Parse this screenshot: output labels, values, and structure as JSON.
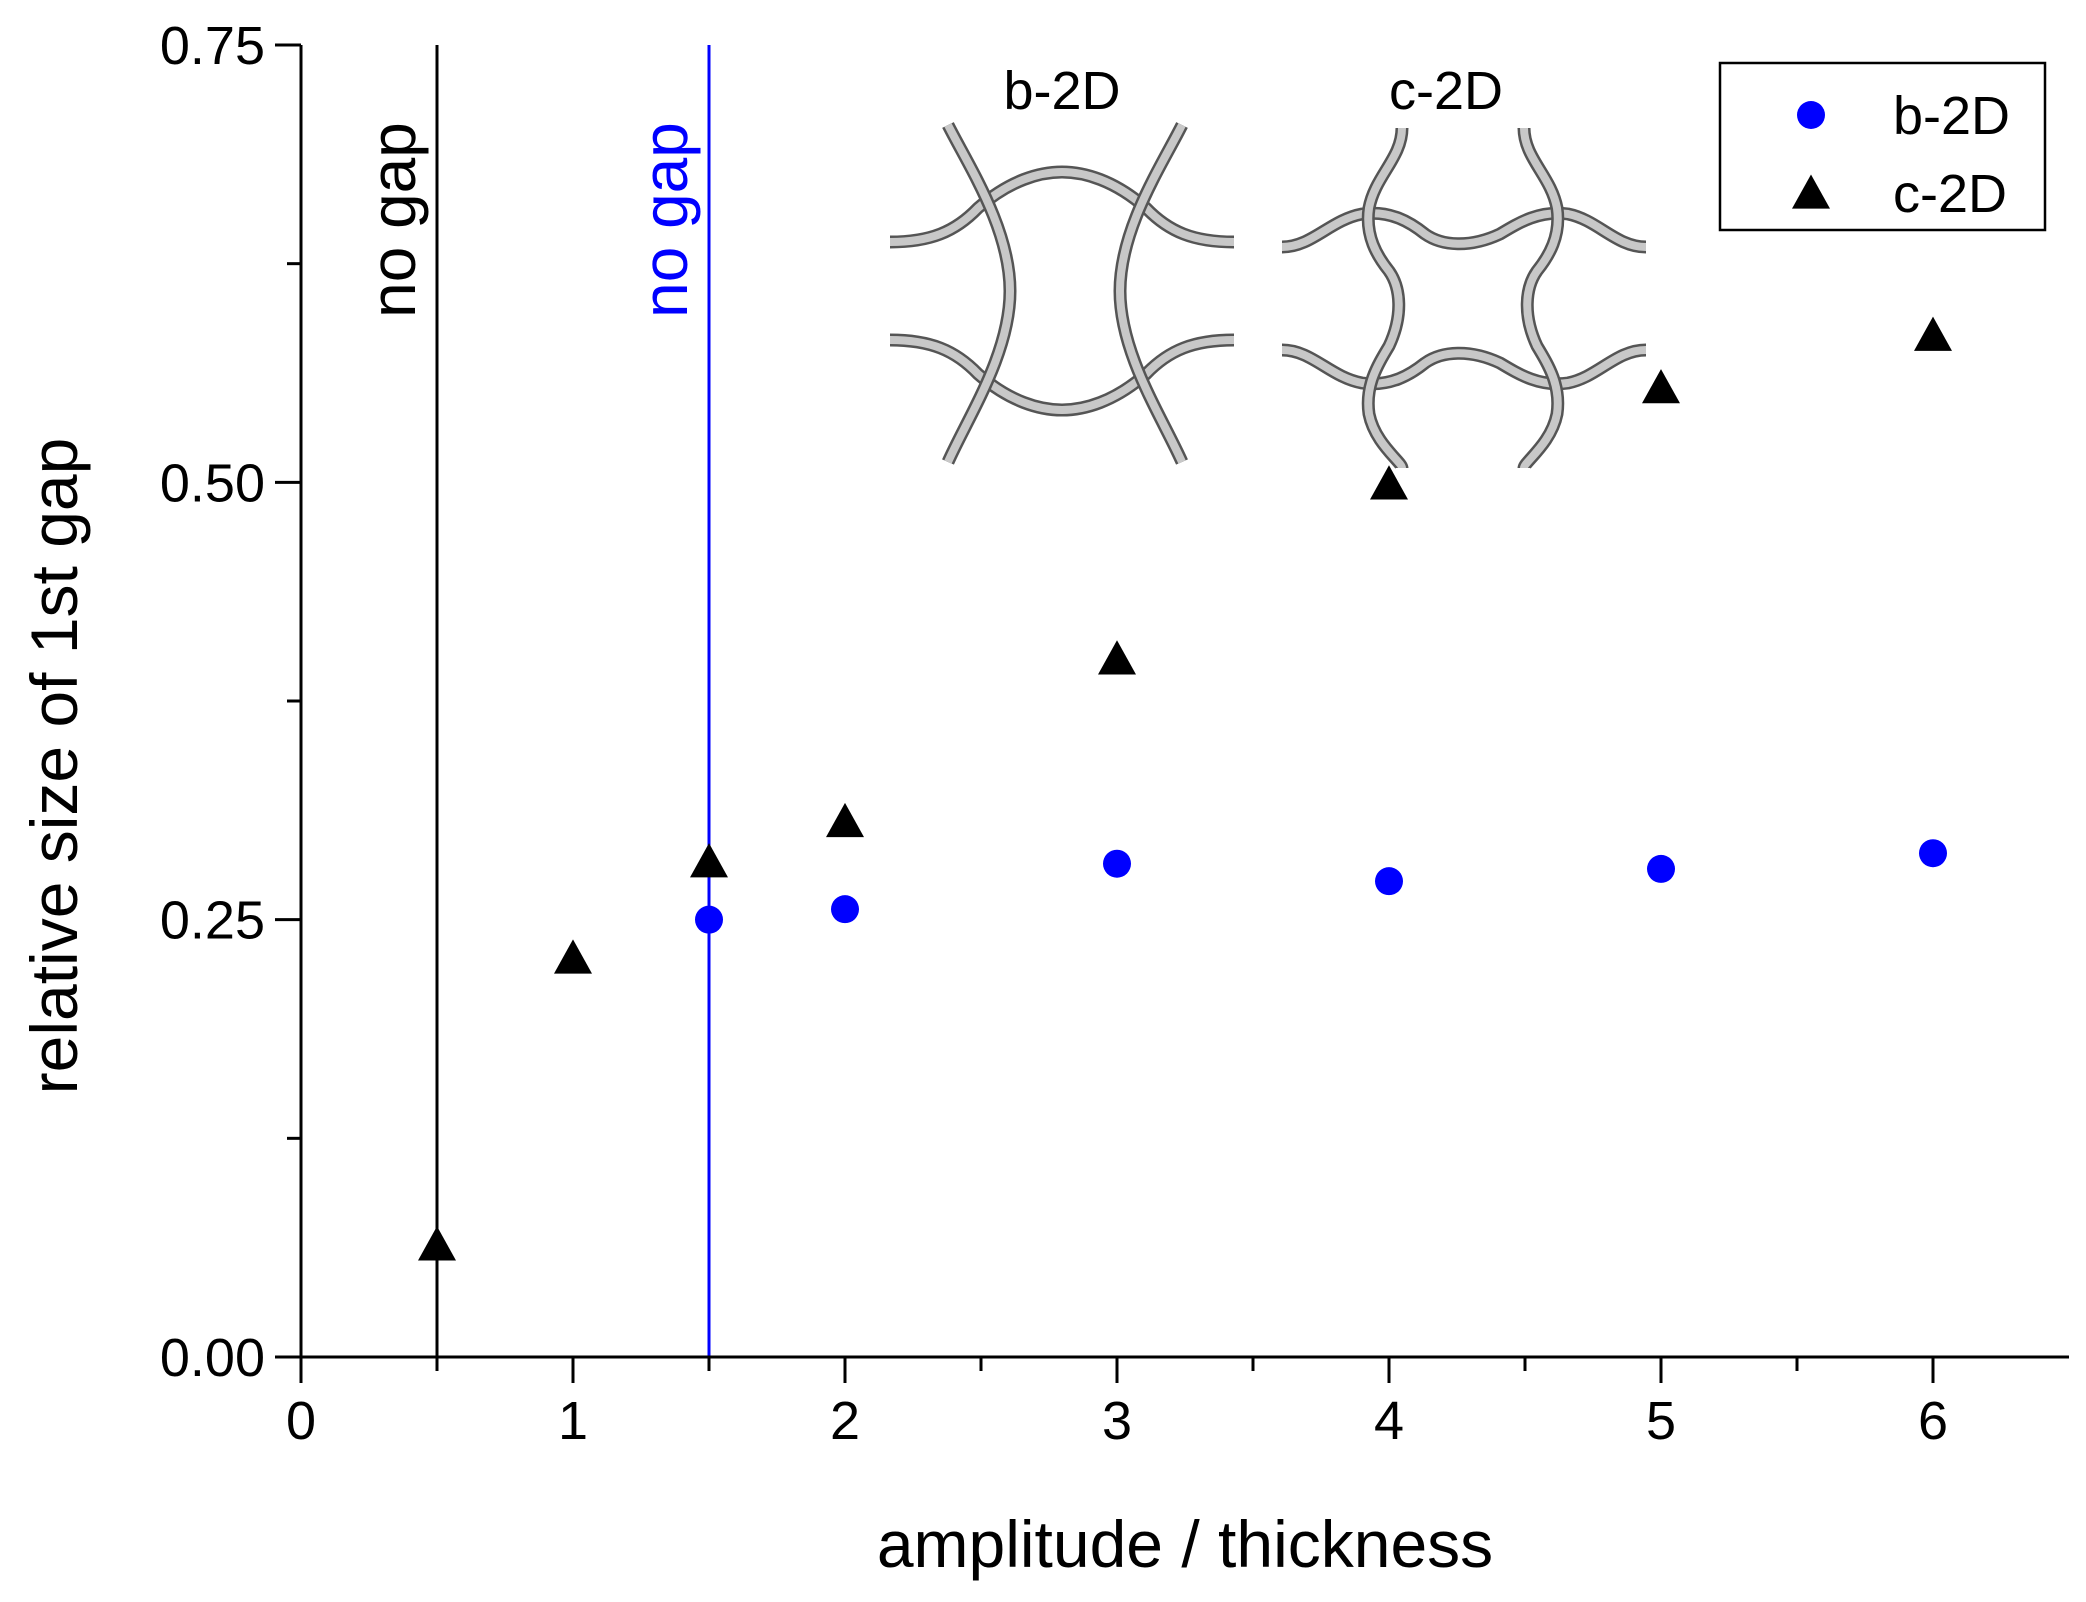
{
  "chart_data": {
    "type": "scatter",
    "title": "",
    "xlabel": "amplitude / thickness",
    "ylabel": "relative size of 1st gap",
    "xlim": [
      0,
      6.5
    ],
    "ylim": [
      0,
      0.75
    ],
    "x_ticks": [
      "0",
      "1",
      "2",
      "3",
      "4",
      "5",
      "6"
    ],
    "y_ticks": [
      "0.00",
      "0.25",
      "0.50",
      "0.75"
    ],
    "grid": false,
    "legend_position": "top-right",
    "series": [
      {
        "name": "b-2D",
        "marker": "circle",
        "color": "#0000ff",
        "x": [
          1.5,
          2,
          3,
          4,
          5,
          6
        ],
        "y": [
          0.25,
          0.256,
          0.282,
          0.272,
          0.279,
          0.288
        ]
      },
      {
        "name": "c-2D",
        "marker": "triangle",
        "color": "#000000",
        "x": [
          0.5,
          1,
          1.5,
          2,
          3,
          4,
          5,
          6
        ],
        "y": [
          0.063,
          0.227,
          0.282,
          0.305,
          0.398,
          0.498,
          0.553,
          0.583
        ]
      }
    ],
    "vertical_lines": [
      {
        "x": 0.5,
        "color": "#000000",
        "label": "no gap"
      },
      {
        "x": 1.5,
        "color": "#0000ff",
        "label": "no gap"
      }
    ],
    "insets": [
      {
        "label": "b-2D"
      },
      {
        "label": "c-2D"
      }
    ]
  }
}
